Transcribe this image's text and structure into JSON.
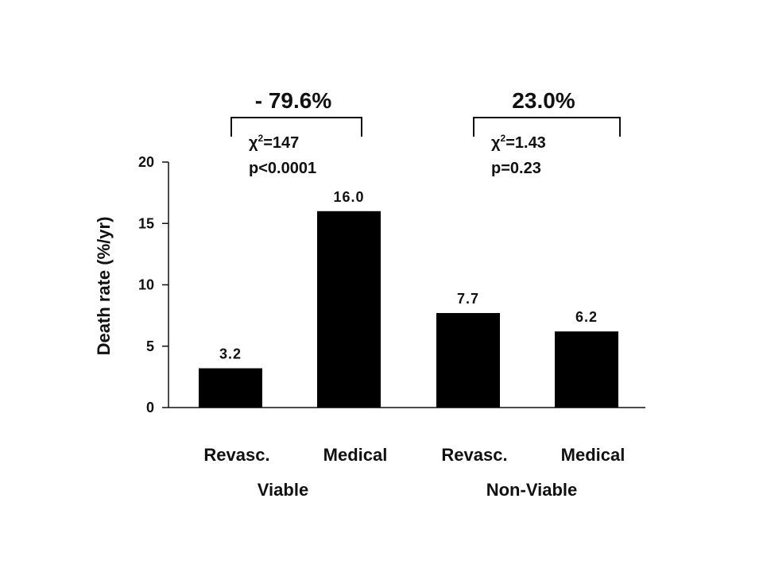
{
  "chart_data": {
    "type": "bar",
    "ylabel": "Death rate (%/yr)",
    "ylim": [
      0,
      20
    ],
    "yticks": [
      "0",
      "5",
      "10",
      "15",
      "20"
    ],
    "categories": [
      "Revasc.",
      "Medical",
      "Revasc.",
      "Medical"
    ],
    "values": [
      3.2,
      16.0,
      7.7,
      6.2
    ],
    "value_labels": [
      "3.2",
      "16.0",
      "7.7",
      "6.2"
    ],
    "groups": [
      {
        "name": "Viable",
        "change": "- 79.6%",
        "chi_symbol": "χ",
        "chi_sup": "2",
        "chi_value": "=147",
        "p_value": "p<0.0001"
      },
      {
        "name": "Non-Viable",
        "change": "23.0%",
        "chi_symbol": "χ",
        "chi_sup": "2",
        "chi_value": "=1.43",
        "p_value": "p=0.23"
      }
    ],
    "bar_color": "#000000",
    "grid": false,
    "legend": "none"
  }
}
